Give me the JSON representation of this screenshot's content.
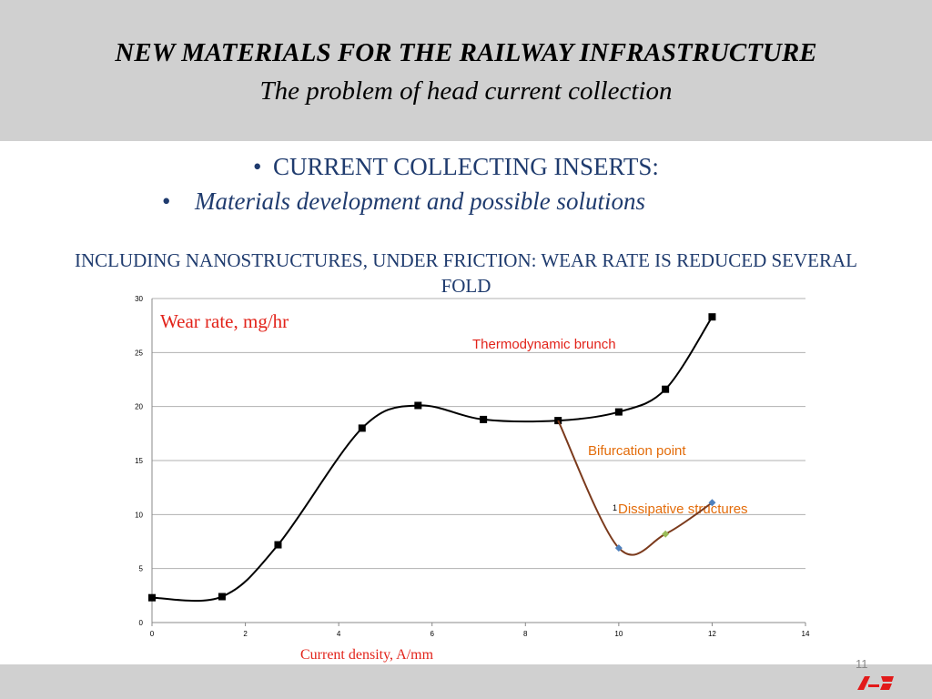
{
  "header": {
    "title": "NEW MATERIALS FOR THE RAILWAY INFRASTRUCTURE",
    "subtitle": "The problem of head current collection"
  },
  "bullets": [
    "CURRENT COLLECTING INSERTS:",
    "Materials development and possible solutions"
  ],
  "heading": "INCLUDING NANOSTRUCTURES, UNDER FRICTION: WEAR RATE IS REDUCED SEVERAL FOLD",
  "page_number": "11",
  "chart_data": {
    "type": "line",
    "y_label": "Wear rate, mg/hr",
    "x_label": "Current density, A/mm",
    "annotations": [
      "Thermodynamic brunch",
      "Bifurcation point",
      "1",
      "Dissipative structures"
    ],
    "series": [
      {
        "color": "#000000",
        "marker": "square",
        "x": [
          0,
          1.5,
          2.7,
          4.5,
          5.7,
          7.1,
          8.7,
          10,
          11,
          12
        ],
        "values": [
          2.3,
          2.4,
          7.2,
          18,
          20.1,
          18.8,
          18.7,
          19.5,
          21.6,
          28.3
        ]
      },
      {
        "color": "#7b3a1c",
        "marker": "diamond",
        "marker_colors": [
          null,
          "#4f81bd",
          "#9bbb59",
          "#4f81bd"
        ],
        "x": [
          8.7,
          10,
          11,
          12
        ],
        "values": [
          18.7,
          6.9,
          8.2,
          11.1
        ]
      }
    ],
    "xlim": [
      0,
      14
    ],
    "xticks": [
      0,
      2,
      4,
      6,
      8,
      10,
      12,
      14
    ],
    "ylim": [
      0,
      30
    ],
    "yticks": [
      0,
      5,
      10,
      15,
      20,
      25,
      30
    ],
    "grid": true
  }
}
